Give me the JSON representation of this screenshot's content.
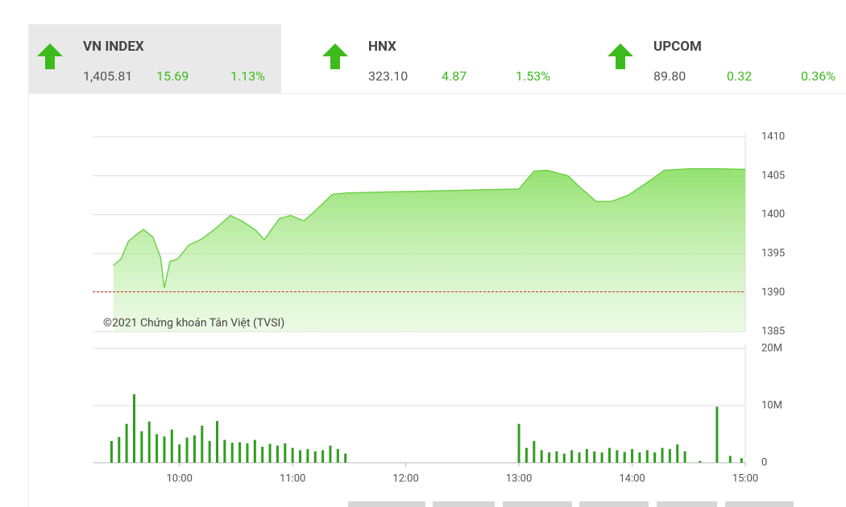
{
  "indices": [
    {
      "name": "VN INDEX",
      "value": "1,405.81",
      "change": "15.69",
      "percent": "1.13%"
    },
    {
      "name": "HNX",
      "value": "323.10",
      "change": "4.87",
      "percent": "1.53%"
    },
    {
      "name": "UPCOM",
      "value": "89.80",
      "change": "0.32",
      "percent": "0.36%"
    }
  ],
  "chart_data": [
    {
      "type": "area",
      "annotation": "©2021 Chứng khoán Tân Việt (TVSI)",
      "color": "#6fd24a",
      "reference": 1390.12,
      "reference_color": "#e53935",
      "x": [
        "09:25",
        "09:29",
        "09:33",
        "09:38",
        "09:41",
        "09:46",
        "09:50",
        "09:52",
        "09:55",
        "09:59",
        "10:05",
        "10:12",
        "10:20",
        "10:27",
        "10:33",
        "10:40",
        "10:45",
        "10:53",
        "10:59",
        "11:06",
        "11:12",
        "11:21",
        "11:29",
        "13:00",
        "13:08",
        "13:15",
        "13:26",
        "13:32",
        "13:41",
        "13:49",
        "13:58",
        "14:09",
        "14:17",
        "14:30",
        "14:47",
        "15:00"
      ],
      "values": [
        1393.5,
        1394.3,
        1396.6,
        1397.6,
        1398.1,
        1397.1,
        1394.5,
        1390.6,
        1394.0,
        1394.3,
        1396.1,
        1396.9,
        1398.4,
        1399.9,
        1399.2,
        1398.1,
        1396.8,
        1399.5,
        1399.9,
        1399.2,
        1400.5,
        1402.6,
        1402.8,
        1403.3,
        1405.6,
        1405.7,
        1405.0,
        1403.6,
        1401.7,
        1401.7,
        1402.5,
        1404.3,
        1405.7,
        1405.9,
        1405.9,
        1405.81
      ],
      "xlim": [
        "09:14",
        "15:00"
      ],
      "ylim": [
        1385,
        1410
      ],
      "yticks": [
        1385,
        1390,
        1395,
        1400,
        1405,
        1410
      ],
      "grid": true
    },
    {
      "type": "bar",
      "color": "#2f9e1f",
      "x": [
        "09:24",
        "09:28",
        "09:32",
        "09:36",
        "09:40",
        "09:44",
        "09:48",
        "09:52",
        "09:56",
        "10:00",
        "10:04",
        "10:08",
        "10:12",
        "10:16",
        "10:20",
        "10:24",
        "10:28",
        "10:32",
        "10:36",
        "10:40",
        "10:44",
        "10:48",
        "10:52",
        "10:56",
        "11:00",
        "11:04",
        "11:08",
        "11:12",
        "11:16",
        "11:20",
        "11:24",
        "11:28",
        "13:00",
        "13:04",
        "13:08",
        "13:12",
        "13:16",
        "13:20",
        "13:24",
        "13:28",
        "13:32",
        "13:36",
        "13:40",
        "13:44",
        "13:48",
        "13:52",
        "13:56",
        "14:00",
        "14:04",
        "14:08",
        "14:12",
        "14:16",
        "14:20",
        "14:24",
        "14:28",
        "14:36",
        "14:45",
        "14:52",
        "14:58"
      ],
      "values": [
        3.8,
        4.5,
        6.8,
        12,
        5.5,
        7.2,
        5.0,
        4.6,
        5.8,
        3.2,
        4.4,
        4.8,
        6.5,
        3.8,
        7.3,
        4.0,
        3.5,
        3.6,
        3.4,
        4.0,
        2.8,
        3.3,
        3.0,
        3.4,
        2.6,
        2.2,
        2.4,
        2.0,
        2.2,
        3.0,
        2.4,
        1.6,
        6.8,
        2.6,
        3.8,
        2.2,
        1.8,
        2.0,
        1.6,
        2.2,
        1.8,
        2.4,
        2.0,
        1.8,
        2.6,
        2.2,
        1.9,
        2.4,
        1.8,
        2.2,
        1.8,
        2.6,
        2.4,
        3.2,
        2.0,
        0.3,
        9.8,
        1.2,
        0.8
      ],
      "xlim": [
        "09:14",
        "15:00"
      ],
      "xticks": [
        "10:00",
        "11:00",
        "12:00",
        "13:00",
        "14:00",
        "15:00"
      ],
      "ylim": [
        0,
        20
      ],
      "yticks": [
        0,
        {
          "value": 10,
          "label": "10M"
        },
        {
          "value": 20,
          "label": "20M"
        }
      ],
      "grid": true
    }
  ]
}
